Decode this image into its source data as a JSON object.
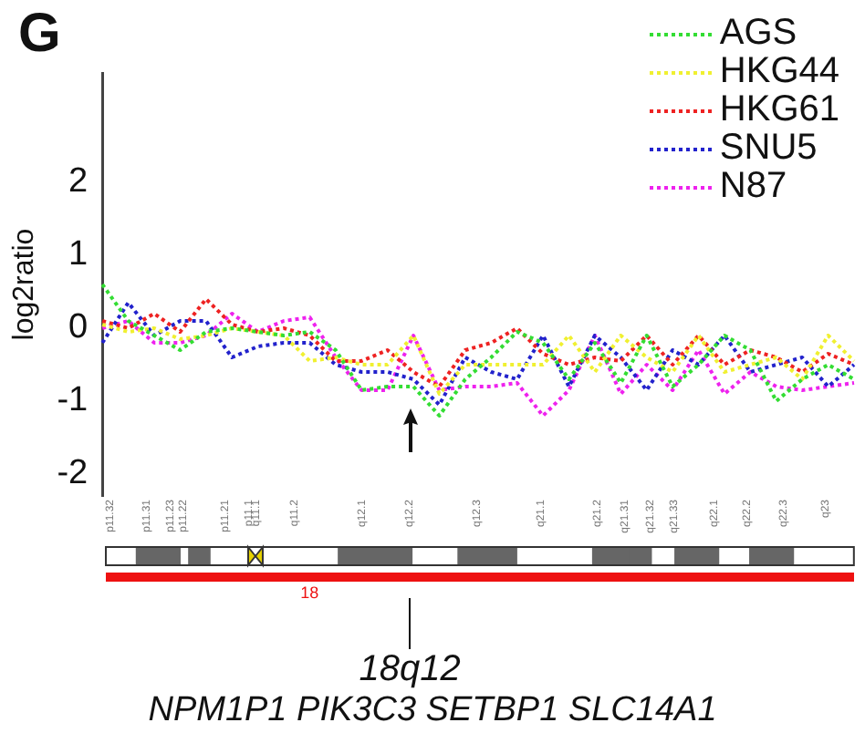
{
  "chart_data": {
    "type": "line",
    "title": "G",
    "ylabel": "log2ratio",
    "categories": [
      null,
      null,
      null,
      null,
      null,
      null,
      null,
      null,
      null,
      null,
      null,
      null,
      null,
      null,
      null,
      null,
      null,
      null,
      null,
      null,
      null,
      null,
      null,
      null,
      null,
      null,
      null,
      null,
      null,
      null
    ],
    "ylim": [
      -2.3,
      3.5
    ],
    "yticks": [
      -2,
      -1,
      0,
      1,
      2
    ],
    "series": [
      {
        "name": "AGS",
        "color": "#33dd33",
        "values": [
          0.6,
          0.1,
          -0.1,
          -0.3,
          -0.05,
          0,
          -0.05,
          -0.1,
          -0.05,
          -0.3,
          -0.85,
          -0.8,
          -0.8,
          -1.2,
          -0.7,
          -0.4,
          -0.05,
          -0.2,
          -0.7,
          -0.2,
          -0.75,
          -0.1,
          -0.8,
          -0.5,
          -0.1,
          -0.3,
          -1,
          -0.7,
          -0.5,
          -0.7
        ]
      },
      {
        "name": "HKG44",
        "color": "#f0f030",
        "values": [
          0.05,
          -0.05,
          0,
          -0.15,
          -0.1,
          0,
          -0.05,
          -0.1,
          -0.45,
          -0.4,
          -0.5,
          -0.5,
          -0.1,
          -0.9,
          -0.5,
          -0.5,
          -0.5,
          -0.5,
          -0.1,
          -0.6,
          -0.1,
          -0.4,
          -0.6,
          -0.1,
          -0.6,
          -0.5,
          -0.4,
          -0.7,
          -0.1,
          -0.45
        ]
      },
      {
        "name": "HKG61",
        "color": "#ee2222",
        "values": [
          0.1,
          0,
          0.2,
          -0.05,
          0.4,
          0.05,
          -0.05,
          0,
          -0.1,
          -0.45,
          -0.45,
          -0.3,
          -0.6,
          -0.8,
          -0.3,
          -0.2,
          0,
          -0.35,
          -0.5,
          -0.4,
          -0.45,
          -0.1,
          -0.5,
          -0.1,
          -0.5,
          -0.3,
          -0.4,
          -0.6,
          -0.35,
          -0.5
        ]
      },
      {
        "name": "SNU5",
        "color": "#2222cc",
        "values": [
          -0.2,
          0.35,
          -0.1,
          0.1,
          0.1,
          -0.4,
          -0.25,
          -0.2,
          -0.2,
          -0.5,
          -0.6,
          -0.6,
          -0.7,
          -1.05,
          -0.4,
          -0.6,
          -0.7,
          -0.1,
          -0.8,
          -0.1,
          -0.4,
          -0.85,
          -0.3,
          -0.5,
          -0.1,
          -0.6,
          -0.5,
          -0.4,
          -0.8,
          -0.5
        ]
      },
      {
        "name": "N87",
        "color": "#ee22ee",
        "values": [
          0,
          0.1,
          -0.2,
          -0.2,
          -0.1,
          0.2,
          -0.05,
          0.1,
          0.15,
          -0.4,
          -0.85,
          -0.85,
          -0.1,
          -0.85,
          -0.8,
          -0.8,
          -0.75,
          -1.2,
          -0.85,
          -0.1,
          -0.9,
          -0.5,
          -0.85,
          -0.3,
          -0.9,
          -0.6,
          -0.8,
          -0.85,
          -0.8,
          -0.75
        ]
      }
    ],
    "annotations": [
      "18q12",
      "NPM1P1 PIK3C3 SETBP1 SLC14A1",
      "18",
      "p11.32",
      "p11.31",
      "p11.23",
      "p11.22",
      "p11.21",
      "p11.1",
      "q11.1",
      "q11.2",
      "q12.1",
      "q12.2",
      "q12.3",
      "q21.1",
      "q21.2",
      "q21.31",
      "q21.32",
      "q21.33",
      "q22.1",
      "q22.2",
      "q22.3",
      "q23"
    ],
    "legend": "top right",
    "grid": false,
    "marker": "none",
    "line_style": "dotted",
    "tick_labels": "y"
  }
}
